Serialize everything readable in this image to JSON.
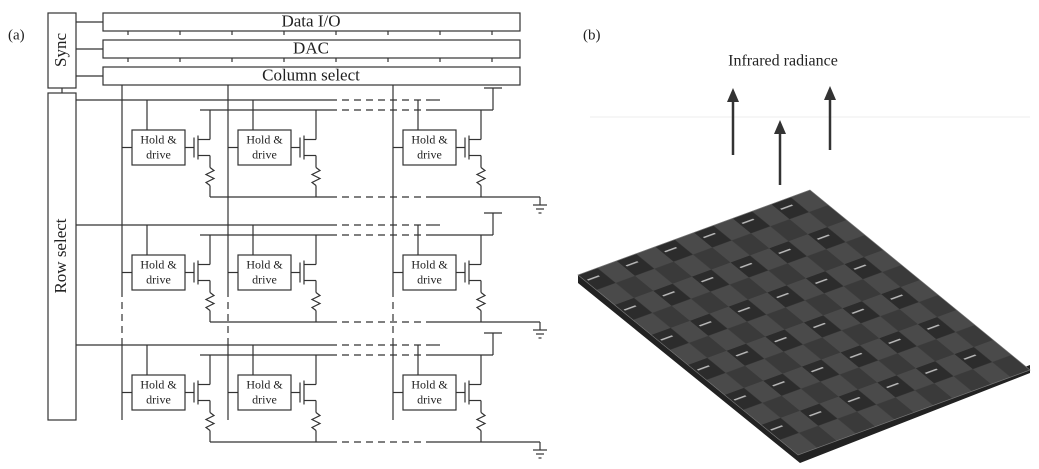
{
  "panel_a": {
    "label": "(a)",
    "sync": "Sync",
    "buses": [
      "Data I/O",
      "DAC",
      "Column select"
    ],
    "row_select": "Row select",
    "cells": [
      [
        "Hold &",
        "drive"
      ],
      [
        "Hold &",
        "drive"
      ],
      [
        "Hold &",
        "drive"
      ],
      [
        "Hold &",
        "drive"
      ],
      [
        "Hold &",
        "drive"
      ],
      [
        "Hold &",
        "drive"
      ],
      [
        "Hold &",
        "drive"
      ],
      [
        "Hold &",
        "drive"
      ],
      [
        "Hold &",
        "drive"
      ]
    ]
  },
  "panel_b": {
    "label": "(b)",
    "caption": "Infrared radiance"
  }
}
